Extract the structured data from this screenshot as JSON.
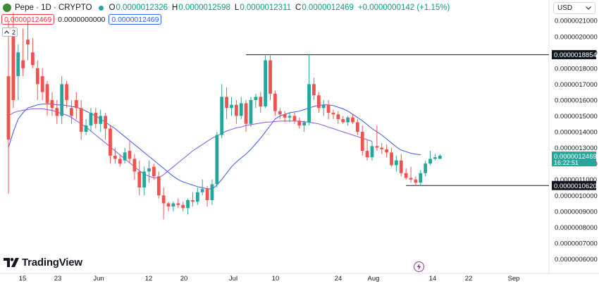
{
  "header": {
    "symbol": "Pepe · 1D · CRYPTO",
    "open_key": "O",
    "open": "0.0000012326",
    "high_key": "H",
    "high": "0.0000012598",
    "low_key": "L",
    "low": "0.0000012311",
    "close_key": "C",
    "close": "0.0000012469",
    "change": "+0.0000000142 (+1.15%)"
  },
  "trade": {
    "sell": "0.0000012469",
    "spread": "0.0000000000",
    "buy": "0.0000012469"
  },
  "indicators_count": "2",
  "currency": "USD",
  "brand": "TradingView",
  "colors": {
    "up": "#26a69a",
    "down": "#ef5350",
    "ma_fast": "#3a56e6",
    "ma_slow": "#8c52e0",
    "line": "#131722"
  },
  "chart_data": {
    "type": "candlestick",
    "x_ticks": [
      "15",
      "23",
      "Jun",
      "12",
      "20",
      "Jul",
      "10",
      "24",
      "Aug",
      "14",
      "22",
      "Sep"
    ],
    "y_ticks": [
      "0.0000021000",
      "0.0000020000",
      "0.0000019000",
      "0.0000018000",
      "0.0000017000",
      "0.0000016000",
      "0.0000015000",
      "0.0000014000",
      "0.0000013000",
      "0.0000012000",
      "0.0000011000",
      "0.0000010000",
      "0.0000009000",
      "0.0000008000",
      "0.0000007000",
      "0.0000006000"
    ],
    "ylim": [
      5.5e-07,
      2.2e-06
    ],
    "price_labels": [
      {
        "text": "0.0000018854",
        "value": 1.8854e-06,
        "style": "line"
      },
      {
        "text": "0.0000010620",
        "value": 1.062e-06,
        "style": "line"
      },
      {
        "text": "0.0000012469",
        "sub": "16:22:51",
        "value": 1.2469e-06,
        "style": "current"
      }
    ],
    "lines": [
      {
        "name": "resistance",
        "value": 1.8854e-06,
        "x_from_candle": 49,
        "x_to_candle": "end"
      },
      {
        "name": "support",
        "value": 1.062e-06,
        "x_from_candle": 82,
        "x_to_candle": "end"
      }
    ],
    "candles": [
      [
        1.75,
        2.1,
        1.01,
        1.35
      ],
      [
        2.05,
        2.15,
        1.55,
        1.6
      ],
      [
        1.75,
        1.95,
        1.6,
        1.9
      ],
      [
        1.85,
        2.05,
        1.75,
        1.8
      ],
      [
        1.98,
        2.1,
        1.85,
        1.95
      ],
      [
        1.9,
        1.99,
        1.8,
        1.82
      ],
      [
        1.8,
        1.85,
        1.6,
        1.7
      ],
      [
        1.75,
        1.8,
        1.6,
        1.65
      ],
      [
        1.7,
        1.72,
        1.5,
        1.58
      ],
      [
        1.6,
        1.65,
        1.5,
        1.55
      ],
      [
        1.55,
        1.6,
        1.45,
        1.5
      ],
      [
        1.5,
        1.75,
        1.45,
        1.7
      ],
      [
        1.7,
        1.72,
        1.55,
        1.6
      ],
      [
        1.55,
        1.6,
        1.45,
        1.5
      ],
      [
        1.6,
        1.65,
        1.48,
        1.55
      ],
      [
        1.55,
        1.6,
        1.35,
        1.4
      ],
      [
        1.4,
        1.48,
        1.38,
        1.44
      ],
      [
        1.44,
        1.55,
        1.4,
        1.52
      ],
      [
        1.52,
        1.55,
        1.42,
        1.45
      ],
      [
        1.45,
        1.54,
        1.4,
        1.5
      ],
      [
        1.5,
        1.52,
        1.35,
        1.42
      ],
      [
        1.42,
        1.44,
        1.2,
        1.25
      ],
      [
        1.25,
        1.3,
        1.2,
        1.23
      ],
      [
        1.23,
        1.26,
        1.18,
        1.2
      ],
      [
        1.22,
        1.3,
        1.2,
        1.27
      ],
      [
        1.28,
        1.34,
        1.2,
        1.23
      ],
      [
        1.23,
        1.26,
        1.1,
        1.15
      ],
      [
        1.15,
        1.22,
        1.0,
        1.05
      ],
      [
        1.05,
        1.18,
        1.0,
        1.15
      ],
      [
        1.15,
        1.22,
        1.08,
        1.17
      ],
      [
        1.18,
        1.2,
        1.1,
        1.12
      ],
      [
        1.12,
        1.15,
        0.98,
        1.0
      ],
      [
        1.0,
        1.05,
        0.85,
        0.95
      ],
      [
        0.95,
        0.96,
        0.9,
        0.93
      ],
      [
        0.93,
        0.96,
        0.9,
        0.95
      ],
      [
        0.95,
        0.98,
        0.92,
        0.94
      ],
      [
        0.94,
        0.96,
        0.9,
        0.92
      ],
      [
        0.92,
        0.98,
        0.88,
        0.97
      ],
      [
        0.97,
        1.02,
        0.93,
        0.96
      ],
      [
        0.96,
        1.05,
        0.94,
        1.02
      ],
      [
        1.02,
        1.1,
        1.0,
        1.04
      ],
      [
        1.04,
        1.06,
        0.93,
        0.97
      ],
      [
        0.97,
        1.1,
        0.94,
        1.07
      ],
      [
        1.07,
        1.4,
        1.05,
        1.38
      ],
      [
        1.38,
        1.7,
        1.36,
        1.62
      ],
      [
        1.62,
        1.68,
        1.48,
        1.55
      ],
      [
        1.55,
        1.62,
        1.5,
        1.57
      ],
      [
        1.57,
        1.6,
        1.45,
        1.5
      ],
      [
        1.5,
        1.62,
        1.48,
        1.58
      ],
      [
        1.58,
        1.6,
        1.4,
        1.45
      ],
      [
        1.45,
        1.62,
        1.43,
        1.6
      ],
      [
        1.6,
        1.64,
        1.55,
        1.62
      ],
      [
        1.62,
        1.65,
        1.52,
        1.56
      ],
      [
        1.56,
        1.88,
        1.55,
        1.85
      ],
      [
        1.85,
        1.88,
        1.6,
        1.64
      ],
      [
        1.64,
        1.66,
        1.5,
        1.53
      ],
      [
        1.53,
        1.55,
        1.48,
        1.51
      ],
      [
        1.51,
        1.53,
        1.46,
        1.49
      ],
      [
        1.49,
        1.52,
        1.46,
        1.5
      ],
      [
        1.5,
        1.52,
        1.45,
        1.47
      ],
      [
        1.47,
        1.49,
        1.42,
        1.44
      ],
      [
        1.44,
        1.47,
        1.4,
        1.46
      ],
      [
        1.46,
        1.89,
        1.44,
        1.7
      ],
      [
        1.7,
        1.74,
        1.6,
        1.63
      ],
      [
        1.63,
        1.65,
        1.52,
        1.55
      ],
      [
        1.55,
        1.6,
        1.5,
        1.57
      ],
      [
        1.57,
        1.6,
        1.48,
        1.52
      ],
      [
        1.52,
        1.54,
        1.48,
        1.51
      ],
      [
        1.51,
        1.53,
        1.45,
        1.48
      ],
      [
        1.48,
        1.5,
        1.45,
        1.46
      ],
      [
        1.46,
        1.5,
        1.44,
        1.49
      ],
      [
        1.49,
        1.51,
        1.45,
        1.46
      ],
      [
        1.46,
        1.48,
        1.38,
        1.4
      ],
      [
        1.4,
        1.44,
        1.25,
        1.28
      ],
      [
        1.28,
        1.35,
        1.22,
        1.24
      ],
      [
        1.24,
        1.34,
        1.22,
        1.31
      ],
      [
        1.31,
        1.44,
        1.28,
        1.3
      ],
      [
        1.3,
        1.33,
        1.26,
        1.29
      ],
      [
        1.29,
        1.32,
        1.24,
        1.27
      ],
      [
        1.27,
        1.3,
        1.18,
        1.19
      ],
      [
        1.19,
        1.25,
        1.15,
        1.22
      ],
      [
        1.22,
        1.26,
        1.12,
        1.14
      ],
      [
        1.14,
        1.17,
        1.1,
        1.11
      ],
      [
        1.11,
        1.18,
        1.08,
        1.1
      ],
      [
        1.1,
        1.12,
        1.06,
        1.08
      ],
      [
        1.08,
        1.16,
        1.06,
        1.14
      ],
      [
        1.14,
        1.22,
        1.12,
        1.2
      ],
      [
        1.2,
        1.28,
        1.19,
        1.23
      ],
      [
        1.23,
        1.26,
        1.22,
        1.24
      ],
      [
        1.23,
        1.26,
        1.23,
        1.25
      ]
    ],
    "ma_fast": [
      1.3,
      1.4,
      1.48,
      1.52,
      1.55,
      1.56,
      1.57,
      1.575,
      1.575,
      1.575,
      1.57,
      1.57,
      1.565,
      1.56,
      1.555,
      1.545,
      1.53,
      1.515,
      1.5,
      1.48,
      1.46,
      1.44,
      1.42,
      1.395,
      1.37,
      1.345,
      1.32,
      1.295,
      1.27,
      1.245,
      1.22,
      1.195,
      1.17,
      1.145,
      1.12,
      1.1,
      1.085,
      1.075,
      1.065,
      1.055,
      1.048,
      1.042,
      1.04,
      1.065,
      1.1,
      1.14,
      1.18,
      1.21,
      1.235,
      1.26,
      1.29,
      1.325,
      1.36,
      1.4,
      1.44,
      1.48,
      1.5,
      1.51,
      1.52,
      1.525,
      1.53,
      1.54,
      1.55,
      1.56,
      1.565,
      1.57,
      1.57,
      1.565,
      1.555,
      1.545,
      1.53,
      1.51,
      1.49,
      1.47,
      1.445,
      1.42,
      1.4,
      1.38,
      1.355,
      1.33,
      1.305,
      1.285,
      1.275,
      1.265,
      1.26,
      1.255
    ],
    "ma_slow": [
      1.5,
      1.52,
      1.53,
      1.535,
      1.54,
      1.545,
      1.545,
      1.545,
      1.54,
      1.535,
      1.525,
      1.515,
      1.505,
      1.49,
      1.47,
      1.45,
      1.43,
      1.405,
      1.38,
      1.355,
      1.33,
      1.305,
      1.28,
      1.255,
      1.23,
      1.205,
      1.18,
      1.155,
      1.135,
      1.12,
      1.11,
      1.11,
      1.13,
      1.155,
      1.18,
      1.205,
      1.23,
      1.255,
      1.28,
      1.3,
      1.32,
      1.34,
      1.36,
      1.375,
      1.39,
      1.405,
      1.415,
      1.425,
      1.43,
      1.44,
      1.445,
      1.45,
      1.455,
      1.46,
      1.462,
      1.465,
      1.467,
      1.468,
      1.468,
      1.468,
      1.466,
      1.464,
      1.46,
      1.455,
      1.45,
      1.44,
      1.43,
      1.42,
      1.41,
      1.4,
      1.39,
      1.38,
      1.37,
      1.36,
      1.35,
      1.34
    ]
  }
}
